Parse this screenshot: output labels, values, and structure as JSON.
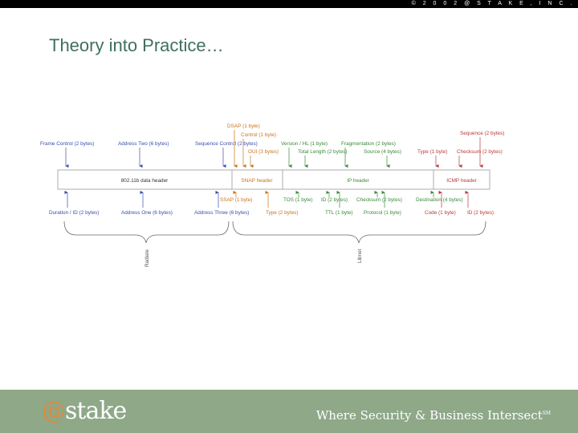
{
  "header": {
    "copyright": "© 2 0 0 2   @ S T A K E ,   I N C ."
  },
  "slide": {
    "title": "Theory into Practice…"
  },
  "diagram": {
    "segments": {
      "dot11": "802.11b data header",
      "snap": "SNAP header",
      "ip": "IP header",
      "icmp": "ICMP header"
    },
    "top_labels": {
      "frame_control": "Frame Control (2 bytes)",
      "address_two": "Address Two (6 bytes)",
      "sequence_control": "Sequence Control (2 bytes)",
      "dsap": "DSAP (1 byte)",
      "control": "Control (1 byte)",
      "oui": "OUI (3 bytes)",
      "version_hl": "Version / HL (1 byte)",
      "fragmentation": "Fragmentation (2 bytes)",
      "total_length": "Total Length (2 bytes)",
      "source": "Source (4 bytes)",
      "type_icmp": "Type (1 byte)",
      "checksum_icmp": "Checksum (2 bytes)",
      "sequence": "Sequence (2 bytes)"
    },
    "bottom_labels": {
      "duration_id": "Duration / ID (2 bytes)",
      "address_one": "Address One (6 bytes)",
      "address_three": "Address Three (6 bytes)",
      "ssap": "SSAP (1 byte)",
      "type_snap": "Type (2 bytes)",
      "tos": "TOS (1 byte)",
      "id_ip": "ID (2 bytes)",
      "checksum_ip": "Checksum (2 bytes)",
      "destination": "Destination (4 bytes)",
      "ttl": "TTL (1 byte)",
      "protocol": "Protocol (1 byte)",
      "code": "Code (1 byte)",
      "id_icmp": "ID (2 bytes)"
    },
    "brackets": {
      "left": "Radiate",
      "right": "Libnet"
    },
    "colors": {
      "blue": "#3a4fb0",
      "orange": "#c8741e",
      "green": "#3a8a3a",
      "red": "#b83a3a"
    }
  },
  "footer": {
    "logo_at": "@",
    "logo_word": "stake",
    "tagline": "Where Security & Business Intersect",
    "tagline_mark": "SM"
  }
}
